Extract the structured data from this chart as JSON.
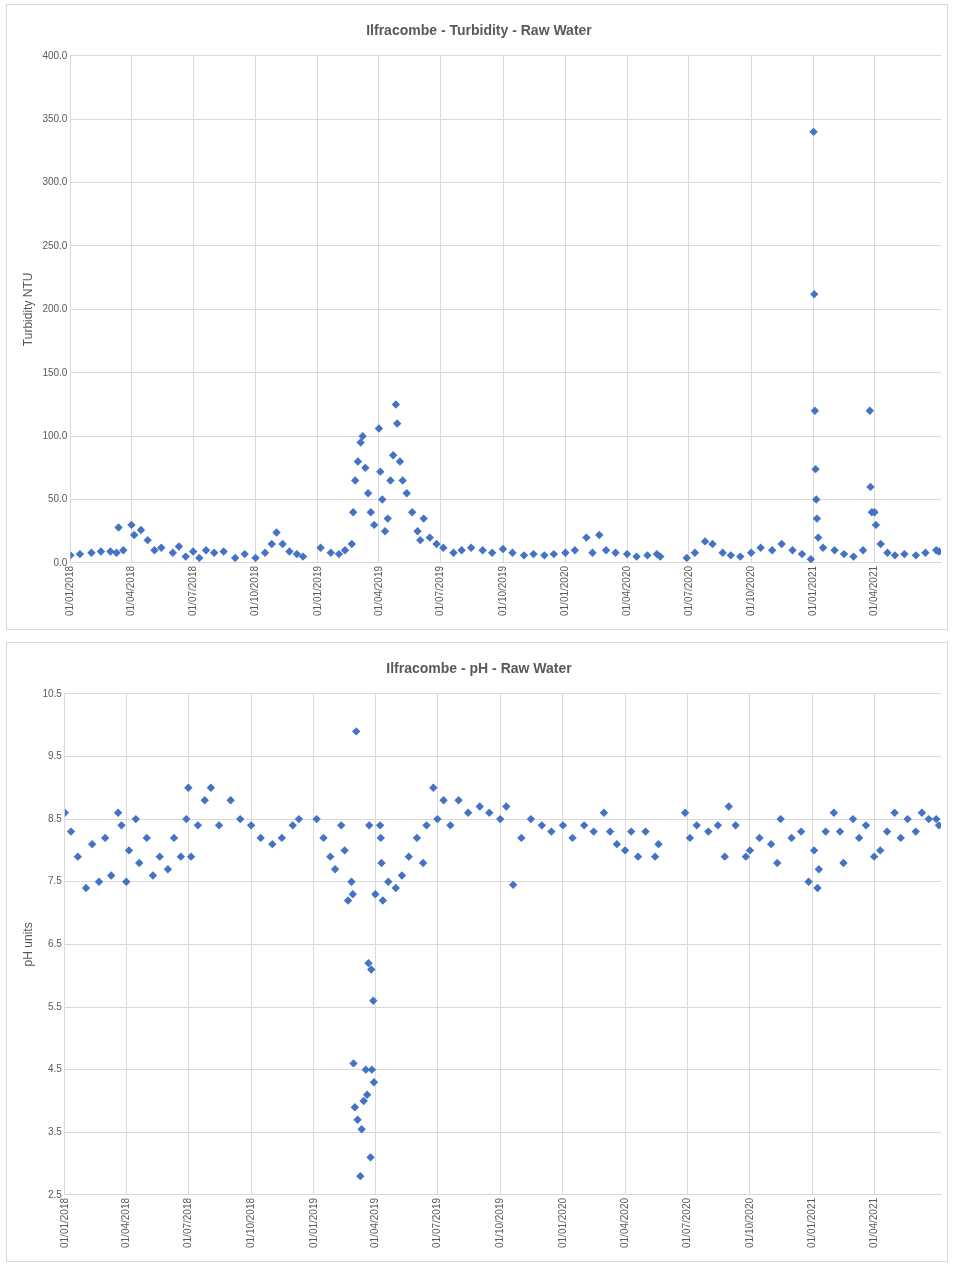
{
  "chart_data": [
    {
      "type": "scatter",
      "title": "Ilfracombe - Turbidity - Raw Water",
      "ylabel": "Turbidity NTU",
      "color": "#4472c4",
      "marker": "diamond",
      "grid": true,
      "x": [
        "2018-01-01",
        "2018-01-15",
        "2018-02-01",
        "2018-02-15",
        "2018-03-01",
        "2018-03-10",
        "2018-03-13",
        "2018-03-20",
        "2018-04-01",
        "2018-04-05",
        "2018-04-15",
        "2018-04-25",
        "2018-05-05",
        "2018-05-15",
        "2018-06-01",
        "2018-06-10",
        "2018-06-20",
        "2018-07-01",
        "2018-07-10",
        "2018-07-20",
        "2018-08-01",
        "2018-08-15",
        "2018-09-01",
        "2018-09-15",
        "2018-10-01",
        "2018-10-15",
        "2018-10-25",
        "2018-11-01",
        "2018-11-10",
        "2018-11-20",
        "2018-12-01",
        "2018-12-10",
        "2019-01-05",
        "2019-01-20",
        "2019-02-01",
        "2019-02-10",
        "2019-02-20",
        "2019-02-22",
        "2019-02-25",
        "2019-03-01",
        "2019-03-05",
        "2019-03-08",
        "2019-03-12",
        "2019-03-16",
        "2019-03-20",
        "2019-03-25",
        "2019-04-01",
        "2019-04-03",
        "2019-04-06",
        "2019-04-10",
        "2019-04-14",
        "2019-04-18",
        "2019-04-22",
        "2019-04-26",
        "2019-04-28",
        "2019-05-02",
        "2019-05-06",
        "2019-05-12",
        "2019-05-20",
        "2019-05-28",
        "2019-06-01",
        "2019-06-06",
        "2019-06-15",
        "2019-06-25",
        "2019-07-05",
        "2019-07-20",
        "2019-08-01",
        "2019-08-15",
        "2019-09-01",
        "2019-09-15",
        "2019-10-01",
        "2019-10-15",
        "2019-11-01",
        "2019-11-15",
        "2019-12-01",
        "2019-12-15",
        "2020-01-01",
        "2020-01-15",
        "2020-02-01",
        "2020-02-10",
        "2020-02-20",
        "2020-03-01",
        "2020-03-15",
        "2020-04-01",
        "2020-04-15",
        "2020-05-01",
        "2020-05-15",
        "2020-05-20",
        "2020-06-28",
        "2020-07-10",
        "2020-07-25",
        "2020-08-05",
        "2020-08-20",
        "2020-09-01",
        "2020-09-15",
        "2020-10-01",
        "2020-10-15",
        "2020-11-01",
        "2020-11-15",
        "2020-12-01",
        "2020-12-15",
        "2020-12-28",
        "2021-01-01",
        "2021-01-02",
        "2021-01-03",
        "2021-01-04",
        "2021-01-05",
        "2021-01-06",
        "2021-01-08",
        "2021-01-15",
        "2021-02-01",
        "2021-02-15",
        "2021-03-01",
        "2021-03-15",
        "2021-03-25",
        "2021-03-26",
        "2021-03-28",
        "2021-04-01",
        "2021-04-03",
        "2021-04-10",
        "2021-04-20",
        "2021-05-01",
        "2021-05-15",
        "2021-06-01",
        "2021-06-15",
        "2021-07-01",
        "2021-07-05"
      ],
      "values": [
        6,
        7,
        8,
        9,
        9,
        8,
        28,
        10,
        30,
        22,
        26,
        18,
        10,
        12,
        8,
        13,
        5,
        9,
        4,
        10,
        8,
        9,
        4,
        7,
        4,
        8,
        15,
        24,
        15,
        9,
        7,
        5,
        12,
        8,
        7,
        10,
        15,
        40,
        65,
        80,
        95,
        100,
        75,
        55,
        40,
        30,
        106,
        72,
        50,
        25,
        35,
        65,
        85,
        125,
        110,
        80,
        65,
        55,
        40,
        25,
        18,
        35,
        20,
        15,
        12,
        8,
        10,
        12,
        10,
        8,
        11,
        8,
        6,
        7,
        6,
        7,
        8,
        10,
        20,
        8,
        22,
        10,
        8,
        7,
        5,
        6,
        7,
        5,
        4,
        8,
        17,
        15,
        8,
        6,
        5,
        8,
        12,
        10,
        15,
        10,
        7,
        3,
        340,
        212,
        120,
        74,
        50,
        35,
        20,
        12,
        10,
        7,
        5,
        10,
        120,
        60,
        40,
        40,
        30,
        15,
        8,
        6,
        7,
        6,
        8,
        10,
        9
      ],
      "xlim": [
        "2018-01-01",
        "2021-07-08"
      ],
      "xticks": [
        {
          "value": "2018-01-01",
          "label": "01/01/2018"
        },
        {
          "value": "2018-04-01",
          "label": "01/04/2018"
        },
        {
          "value": "2018-07-01",
          "label": "01/07/2018"
        },
        {
          "value": "2018-10-01",
          "label": "01/10/2018"
        },
        {
          "value": "2019-01-01",
          "label": "01/01/2019"
        },
        {
          "value": "2019-04-01",
          "label": "01/04/2019"
        },
        {
          "value": "2019-07-01",
          "label": "01/07/2019"
        },
        {
          "value": "2019-10-01",
          "label": "01/10/2019"
        },
        {
          "value": "2020-01-01",
          "label": "01/01/2020"
        },
        {
          "value": "2020-04-01",
          "label": "01/04/2020"
        },
        {
          "value": "2020-07-01",
          "label": "01/07/2020"
        },
        {
          "value": "2020-10-01",
          "label": "01/10/2020"
        },
        {
          "value": "2021-01-01",
          "label": "01/01/2021"
        },
        {
          "value": "2021-04-01",
          "label": "01/04/2021"
        }
      ],
      "ylim": [
        0,
        400
      ],
      "yticks": [
        {
          "value": 0,
          "label": "0.0"
        },
        {
          "value": 50,
          "label": "50.0"
        },
        {
          "value": 100,
          "label": "100.0"
        },
        {
          "value": 150,
          "label": "150.0"
        },
        {
          "value": 200,
          "label": "200.0"
        },
        {
          "value": 250,
          "label": "250.0"
        },
        {
          "value": 300,
          "label": "300.0"
        },
        {
          "value": 350,
          "label": "350.0"
        },
        {
          "value": 400,
          "label": "400.0"
        }
      ]
    },
    {
      "type": "scatter",
      "title": "Ilfracombe - pH - Raw Water",
      "ylabel": "pH units",
      "color": "#4472c4",
      "marker": "diamond",
      "grid": true,
      "x": [
        "2018-01-01",
        "2018-01-10",
        "2018-01-20",
        "2018-02-01",
        "2018-02-10",
        "2018-02-20",
        "2018-03-01",
        "2018-03-10",
        "2018-03-20",
        "2018-03-25",
        "2018-04-01",
        "2018-04-05",
        "2018-04-15",
        "2018-04-20",
        "2018-05-01",
        "2018-05-10",
        "2018-05-20",
        "2018-06-01",
        "2018-06-10",
        "2018-06-20",
        "2018-06-28",
        "2018-07-01",
        "2018-07-05",
        "2018-07-15",
        "2018-07-25",
        "2018-08-03",
        "2018-08-15",
        "2018-09-01",
        "2018-09-15",
        "2018-10-01",
        "2018-10-15",
        "2018-11-01",
        "2018-11-15",
        "2018-12-01",
        "2018-12-10",
        "2019-01-05",
        "2019-01-15",
        "2019-01-25",
        "2019-02-01",
        "2019-02-10",
        "2019-02-15",
        "2019-02-20",
        "2019-02-25",
        "2019-02-27",
        "2019-02-28",
        "2019-03-02",
        "2019-03-04",
        "2019-03-06",
        "2019-03-10",
        "2019-03-12",
        "2019-03-15",
        "2019-03-18",
        "2019-03-20",
        "2019-03-22",
        "2019-03-23",
        "2019-03-25",
        "2019-03-26",
        "2019-03-27",
        "2019-03-29",
        "2019-03-30",
        "2019-04-01",
        "2019-04-08",
        "2019-04-09",
        "2019-04-10",
        "2019-04-12",
        "2019-04-20",
        "2019-05-01",
        "2019-05-10",
        "2019-05-20",
        "2019-06-01",
        "2019-06-10",
        "2019-06-15",
        "2019-06-25",
        "2019-07-01",
        "2019-07-10",
        "2019-07-20",
        "2019-08-01",
        "2019-08-15",
        "2019-09-01",
        "2019-09-15",
        "2019-10-01",
        "2019-10-10",
        "2019-10-20",
        "2019-11-01",
        "2019-11-15",
        "2019-12-01",
        "2019-12-15",
        "2020-01-01",
        "2020-01-15",
        "2020-02-01",
        "2020-02-15",
        "2020-03-01",
        "2020-03-10",
        "2020-03-20",
        "2020-04-01",
        "2020-04-10",
        "2020-04-20",
        "2020-05-01",
        "2020-05-15",
        "2020-05-20",
        "2020-06-28",
        "2020-07-05",
        "2020-07-15",
        "2020-08-01",
        "2020-08-15",
        "2020-08-25",
        "2020-08-31",
        "2020-09-10",
        "2020-09-25",
        "2020-10-01",
        "2020-10-15",
        "2020-11-01",
        "2020-11-10",
        "2020-11-15",
        "2020-12-01",
        "2020-12-15",
        "2020-12-26",
        "2021-01-03",
        "2021-01-08",
        "2021-01-10",
        "2021-01-20",
        "2021-02-01",
        "2021-02-10",
        "2021-02-15",
        "2021-03-01",
        "2021-03-10",
        "2021-03-20",
        "2021-04-01",
        "2021-04-10",
        "2021-04-20",
        "2021-05-01",
        "2021-05-10",
        "2021-05-20",
        "2021-06-01",
        "2021-06-10",
        "2021-06-20",
        "2021-07-01",
        "2021-07-05"
      ],
      "values": [
        8.6,
        8.3,
        7.9,
        7.4,
        8.1,
        7.5,
        8.2,
        7.6,
        8.6,
        8.4,
        7.5,
        8.0,
        8.5,
        7.8,
        8.2,
        7.6,
        7.9,
        7.7,
        8.2,
        7.9,
        8.5,
        9.0,
        7.9,
        8.4,
        8.8,
        9.0,
        8.4,
        8.8,
        8.5,
        8.4,
        8.2,
        8.1,
        8.2,
        8.4,
        8.5,
        8.5,
        8.2,
        7.9,
        7.7,
        8.4,
        8.0,
        7.2,
        7.5,
        7.3,
        4.6,
        3.9,
        9.9,
        3.7,
        2.8,
        3.55,
        4.0,
        4.5,
        4.1,
        6.2,
        8.4,
        3.1,
        6.1,
        4.5,
        5.6,
        4.3,
        7.3,
        8.4,
        8.2,
        7.8,
        7.2,
        7.5,
        7.4,
        7.6,
        7.9,
        8.2,
        7.8,
        8.4,
        9.0,
        8.5,
        8.8,
        8.4,
        8.8,
        8.6,
        8.7,
        8.6,
        8.5,
        8.7,
        7.45,
        8.2,
        8.5,
        8.4,
        8.3,
        8.4,
        8.2,
        8.4,
        8.3,
        8.6,
        8.3,
        8.1,
        8.0,
        8.3,
        7.9,
        8.3,
        7.9,
        8.1,
        8.6,
        8.2,
        8.4,
        8.3,
        8.4,
        7.9,
        8.7,
        8.4,
        7.9,
        8.0,
        8.2,
        8.1,
        7.8,
        8.5,
        8.2,
        8.3,
        7.5,
        8.0,
        7.4,
        7.7,
        8.3,
        8.6,
        8.3,
        7.8,
        8.5,
        8.2,
        8.4,
        7.9,
        8.0,
        8.3,
        8.6,
        8.2,
        8.5,
        8.3,
        8.6,
        8.5,
        8.5,
        8.4
      ],
      "xlim": [
        "2018-01-01",
        "2021-07-08"
      ],
      "xticks": [
        {
          "value": "2018-01-01",
          "label": "01/01/2018"
        },
        {
          "value": "2018-04-01",
          "label": "01/04/2018"
        },
        {
          "value": "2018-07-01",
          "label": "01/07/2018"
        },
        {
          "value": "2018-10-01",
          "label": "01/10/2018"
        },
        {
          "value": "2019-01-01",
          "label": "01/01/2019"
        },
        {
          "value": "2019-04-01",
          "label": "01/04/2019"
        },
        {
          "value": "2019-07-01",
          "label": "01/07/2019"
        },
        {
          "value": "2019-10-01",
          "label": "01/10/2019"
        },
        {
          "value": "2020-01-01",
          "label": "01/01/2020"
        },
        {
          "value": "2020-04-01",
          "label": "01/04/2020"
        },
        {
          "value": "2020-07-01",
          "label": "01/07/2020"
        },
        {
          "value": "2020-10-01",
          "label": "01/10/2020"
        },
        {
          "value": "2021-01-01",
          "label": "01/01/2021"
        },
        {
          "value": "2021-04-01",
          "label": "01/04/2021"
        }
      ],
      "ylim": [
        2.5,
        10.5
      ],
      "yticks": [
        2.5,
        3.5,
        4.5,
        5.5,
        6.5,
        7.5,
        8.5,
        9.5,
        10.5
      ]
    }
  ]
}
